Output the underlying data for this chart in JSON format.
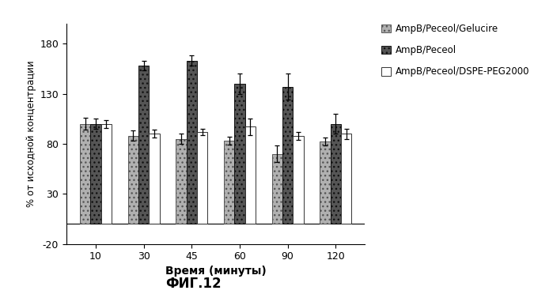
{
  "time_points": [
    10,
    30,
    45,
    60,
    90,
    120
  ],
  "series": {
    "AmpB/Peceol/Gelucire": {
      "values": [
        100,
        88,
        85,
        83,
        70,
        82
      ],
      "errors": [
        6,
        5,
        5,
        4,
        8,
        4
      ],
      "color": "#b0b0b0",
      "hatch": "...",
      "edgecolor": "#555555"
    },
    "AmpB/Peceol": {
      "values": [
        100,
        158,
        163,
        140,
        137,
        100
      ],
      "errors": [
        5,
        5,
        5,
        10,
        13,
        10
      ],
      "color": "#555555",
      "hatch": "...",
      "edgecolor": "#111111"
    },
    "AmpB/Peceol/DSPE-PEG2000": {
      "values": [
        100,
        90,
        92,
        97,
        88,
        90
      ],
      "errors": [
        4,
        4,
        3,
        8,
        4,
        5
      ],
      "color": "#ffffff",
      "hatch": "",
      "edgecolor": "#333333"
    }
  },
  "ylabel": "% от исходной концентрации",
  "xlabel": "Время (минуты)",
  "title": "ФИГ.12",
  "ylim": [
    -20,
    200
  ],
  "yticks": [
    -20,
    30,
    80,
    130,
    180
  ],
  "bar_width": 0.22,
  "background_color": "#ffffff",
  "legend_labels": [
    "AmpB/Peceol/Gelucire",
    "AmpB/Peceol",
    "AmpB/Peceol/DSPE-PEG2000"
  ],
  "legend_colors": [
    "#b0b0b0",
    "#555555",
    "#ffffff"
  ],
  "legend_hatches": [
    "...",
    "...",
    ""
  ],
  "legend_edgecolors": [
    "#555555",
    "#111111",
    "#333333"
  ]
}
